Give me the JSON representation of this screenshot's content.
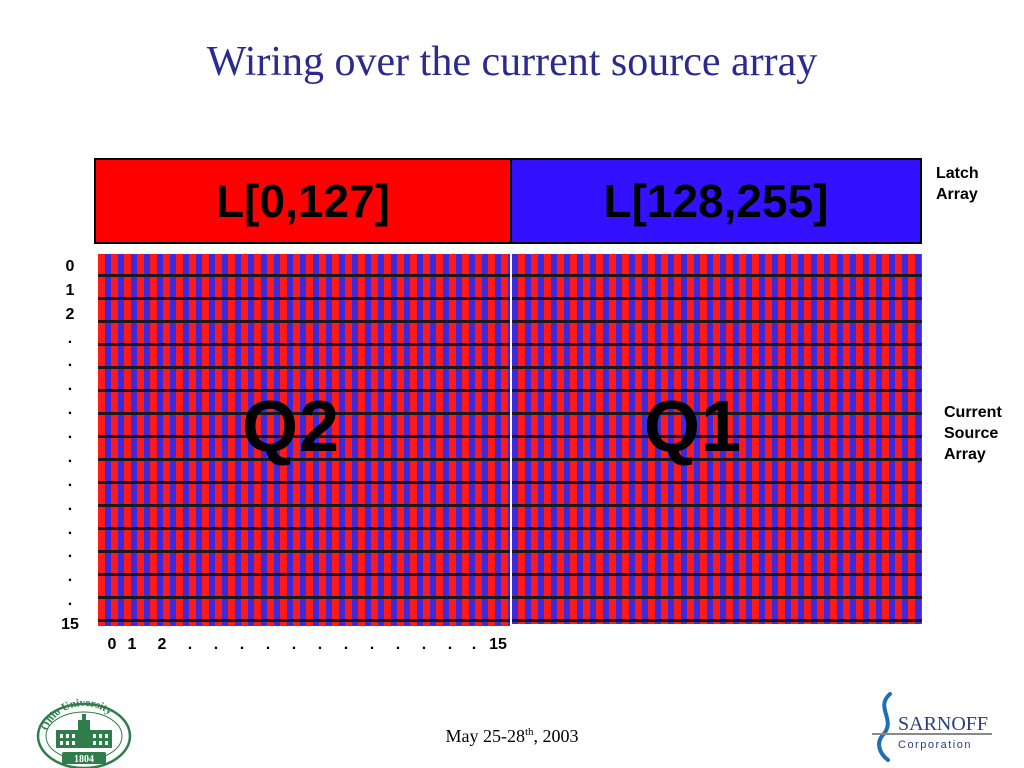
{
  "slide": {
    "title": "Wiring over the current source array",
    "footer_date_main": "May 25-28",
    "footer_date_sup": "th",
    "footer_date_year": ", 2003"
  },
  "latch_array": {
    "left_label": "L[0,127]",
    "right_label": "L[128,255]",
    "side_label": "Latch\nArray",
    "left_color": "#ff0000",
    "right_color": "#3311ff"
  },
  "current_source_array": {
    "side_label": "Current\nSource\nArray",
    "quadrant_left": "Q2",
    "quadrant_right": "Q1",
    "row_labels": [
      "0",
      "1",
      "2",
      ".",
      ".",
      ".",
      ".",
      ".",
      ".",
      ".",
      ".",
      ".",
      ".",
      ".",
      ".",
      "15"
    ],
    "col_labels": [
      "0",
      "1",
      "2",
      ".",
      ".",
      ".",
      ".",
      ".",
      ".",
      ".",
      ".",
      ".",
      ".",
      ".",
      ".",
      "15"
    ],
    "stripe_colors": [
      "#ff1a1a",
      "#3b2bdc"
    ],
    "grid_line_color": "#1a1a1a"
  },
  "logos": {
    "left_text_arc": "Ohio University",
    "left_year": "1804",
    "right_name": "SARNOFF",
    "right_sub": "Corporation"
  }
}
